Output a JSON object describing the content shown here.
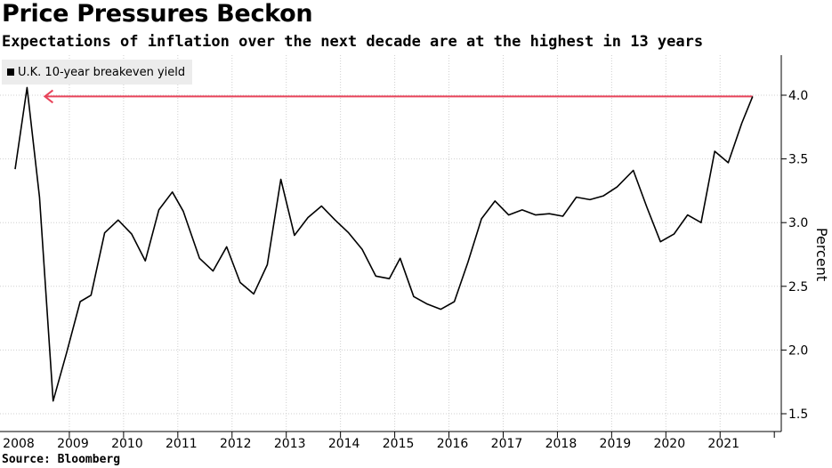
{
  "header": {
    "title": "Price Pressures Beckon",
    "subtitle": "Expectations of inflation over the next decade are at the highest in 13 years"
  },
  "source": "Source: Bloomberg",
  "colors": {
    "series": "#000000",
    "reference_arrow": "#e8435a",
    "grid": "#cfcfcf",
    "legend_bg": "#ececec"
  },
  "chart_data": {
    "type": "line",
    "title": "Price Pressures Beckon",
    "subtitle": "Expectations of inflation over the next decade are at the highest in 13 years",
    "xlabel": "",
    "ylabel": "Percent",
    "y_axis_side": "right",
    "ylim": [
      1.4,
      4.3
    ],
    "y_ticks": [
      1.5,
      2.0,
      2.5,
      3.0,
      3.5,
      4.0
    ],
    "y_tick_labels": [
      "1.5",
      "2.0",
      "2.5",
      "3.0",
      "3.5",
      "4.0"
    ],
    "x_ticks": [
      2008,
      2009,
      2010,
      2011,
      2012,
      2013,
      2014,
      2015,
      2016,
      2017,
      2018,
      2019,
      2020,
      2021
    ],
    "x_tick_labels": [
      "2008",
      "2009",
      "2010",
      "2011",
      "2012",
      "2013",
      "2014",
      "2015",
      "2016",
      "2017",
      "2018",
      "2019",
      "2020",
      "2021"
    ],
    "xlim": [
      2008.0,
      2021.8
    ],
    "grid": true,
    "legend_position": "top-left",
    "series": [
      {
        "name": "U.K. 10-year breakeven yield",
        "x": [
          2008.0,
          2008.22,
          2008.45,
          2008.7,
          2008.95,
          2009.2,
          2009.4,
          2009.65,
          2009.9,
          2010.15,
          2010.4,
          2010.65,
          2010.9,
          2011.1,
          2011.4,
          2011.65,
          2011.9,
          2012.15,
          2012.4,
          2012.65,
          2012.9,
          2013.15,
          2013.4,
          2013.65,
          2013.9,
          2014.15,
          2014.4,
          2014.65,
          2014.9,
          2015.1,
          2015.35,
          2015.6,
          2015.85,
          2016.1,
          2016.35,
          2016.6,
          2016.85,
          2017.1,
          2017.35,
          2017.6,
          2017.85,
          2018.1,
          2018.35,
          2018.6,
          2018.85,
          2019.1,
          2019.4,
          2019.65,
          2019.9,
          2020.15,
          2020.4,
          2020.65,
          2020.9,
          2021.15,
          2021.4,
          2021.6
        ],
        "values": [
          3.42,
          4.06,
          3.2,
          1.6,
          1.98,
          2.38,
          2.43,
          2.92,
          3.02,
          2.91,
          2.7,
          3.1,
          3.24,
          3.09,
          2.72,
          2.62,
          2.81,
          2.53,
          2.44,
          2.67,
          3.34,
          2.9,
          3.04,
          3.13,
          3.02,
          2.92,
          2.79,
          2.58,
          2.56,
          2.72,
          2.42,
          2.36,
          2.32,
          2.38,
          2.69,
          3.03,
          3.17,
          3.06,
          3.1,
          3.06,
          3.07,
          3.05,
          3.2,
          3.18,
          3.21,
          3.28,
          3.41,
          3.12,
          2.85,
          2.91,
          3.06,
          3.0,
          3.56,
          3.47,
          3.78,
          3.99
        ]
      }
    ],
    "annotations": [
      {
        "type": "horizontal-arrow",
        "y": 3.99,
        "from_x": 2021.6,
        "to_x": 2008.22,
        "color": "#e8435a"
      }
    ]
  }
}
